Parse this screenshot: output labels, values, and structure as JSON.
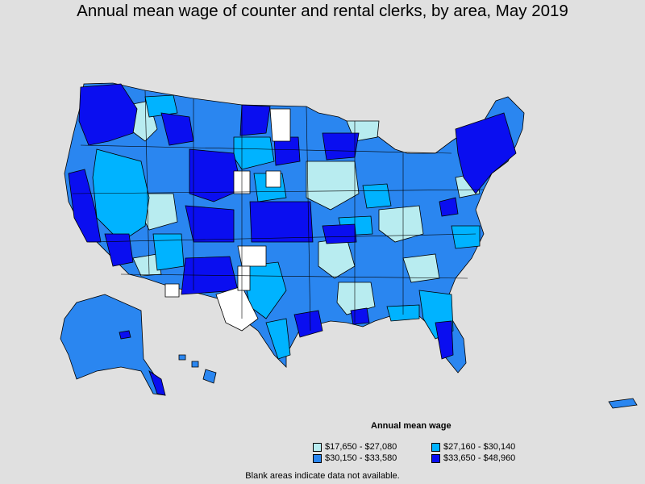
{
  "title": "Annual mean wage of counter and rental clerks, by area, May 2019",
  "legend": {
    "title": "Annual mean wage",
    "items": [
      {
        "label": "$17,650 - $27,080",
        "color": "#b8ecf0"
      },
      {
        "label": "$27,160 - $30,140",
        "color": "#00b3ff"
      },
      {
        "label": "$30,150 - $33,580",
        "color": "#2a86f0"
      },
      {
        "label": "$33,650 - $48,960",
        "color": "#0a0ef0"
      }
    ]
  },
  "footnote": "Blank areas indicate data not available.",
  "colors": {
    "background": "#e0e0e0",
    "no_data": "#ffffff",
    "border": "#000000"
  }
}
